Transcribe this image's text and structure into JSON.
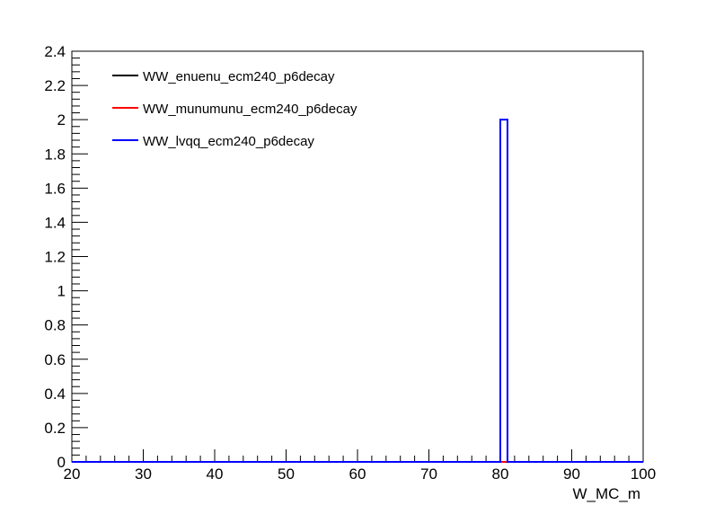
{
  "chart_data": {
    "type": "line",
    "title": "",
    "xlabel": "W_MC_m",
    "ylabel": "",
    "xlim": [
      20,
      100
    ],
    "ylim": [
      0,
      2.4
    ],
    "x_ticks": [
      "20",
      "30",
      "40",
      "50",
      "60",
      "70",
      "80",
      "90",
      "100"
    ],
    "y_ticks": [
      "0",
      "0.2",
      "0.4",
      "0.6",
      "0.8",
      "1",
      "1.2",
      "1.4",
      "1.6",
      "1.8",
      "2",
      "2.2",
      "2.4"
    ],
    "grid": false,
    "legend_position": "top-left",
    "series": [
      {
        "name": "WW_enuenu_ecm240_p6decay",
        "color": "#000000",
        "bins": [
          [
            20,
            100,
            0
          ]
        ]
      },
      {
        "name": "WW_munumunu_ecm240_p6decay",
        "color": "#ff0000",
        "bins": [
          [
            20,
            100,
            0
          ]
        ]
      },
      {
        "name": "WW_lvqq_ecm240_p6decay",
        "color": "#0000ff",
        "bins": [
          [
            20,
            80,
            0
          ],
          [
            80,
            81,
            2
          ],
          [
            81,
            100,
            0
          ]
        ]
      }
    ]
  }
}
